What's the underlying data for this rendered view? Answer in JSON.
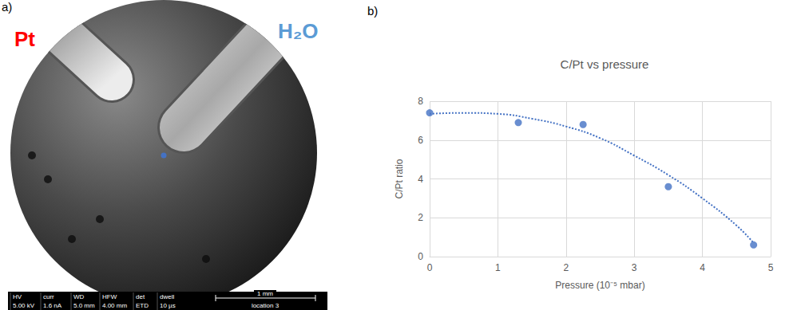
{
  "panel_a": {
    "label": "a)",
    "image_labels": [
      {
        "text": "Pt",
        "color": "#ff0000"
      },
      {
        "text": "H₂O",
        "color": "#5b9bd5"
      }
    ],
    "marker_color": "#4472c4",
    "info_bar": {
      "fields": [
        {
          "label": "HV",
          "value": "5.00 kV"
        },
        {
          "label": "curr",
          "value": "1.6 nA"
        },
        {
          "label": "WD",
          "value": "5.0 mm"
        },
        {
          "label": "HFW",
          "value": "4.00 mm"
        },
        {
          "label": "det",
          "value": "ETD"
        },
        {
          "label": "dwell",
          "value": "10 µs"
        }
      ],
      "scale_bar": "1 mm",
      "location": "location 3"
    }
  },
  "chart_data": {
    "type": "scatter",
    "panel_label": "b)",
    "title": "C/Pt vs pressure",
    "x_label": "Pressure (10⁻⁵ mbar)",
    "y_label": "C/Pt ratio",
    "x": [
      0,
      1.3,
      2.25,
      3.5,
      4.75
    ],
    "values": [
      7.4,
      6.9,
      6.8,
      3.6,
      0.6
    ],
    "color": "#4472c4",
    "marker": "circle",
    "xlim": [
      0,
      5
    ],
    "xticks": [
      0,
      1,
      2,
      3,
      4,
      5
    ],
    "ylim": [
      0,
      8
    ],
    "yticks": [
      0,
      2,
      4,
      6,
      8
    ],
    "grid": true,
    "trendline": {
      "x": [
        0,
        0.5,
        1,
        1.5,
        2,
        2.5,
        3,
        3.5,
        4,
        4.5,
        4.75
      ],
      "values": [
        7.35,
        7.4,
        7.35,
        7.1,
        6.7,
        6.1,
        5.2,
        4.2,
        3.0,
        1.6,
        0.7
      ],
      "line_style": "dotted"
    }
  }
}
